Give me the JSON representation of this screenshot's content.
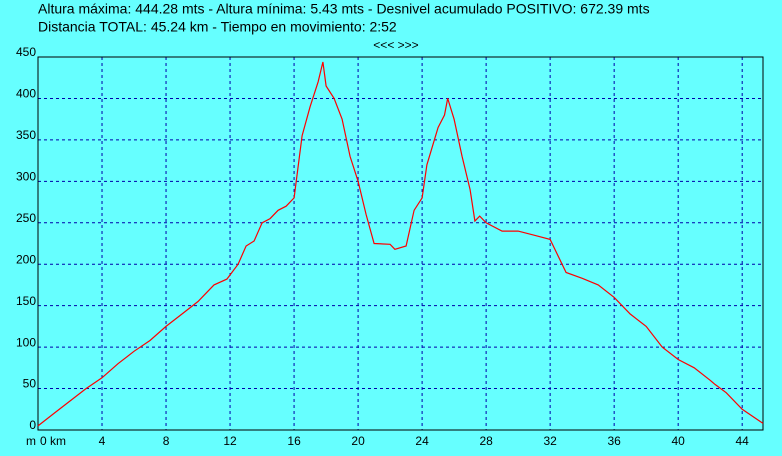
{
  "chart_data": {
    "type": "line",
    "header": [
      "Altura máxima: 444.28 mts - Altura mínima: 5.43 mts - Desnivel acumulado POSITIVO: 672.39 mts",
      "Distancia TOTAL: 45.24 km - Tiempo en movimiento: 2:52"
    ],
    "navigation": "<<< >>>",
    "y_unit": "m",
    "x": [
      0,
      1,
      2,
      3,
      4,
      5,
      6,
      7,
      8,
      9,
      10,
      11,
      11.8,
      12.5,
      13,
      13.5,
      14,
      14.5,
      15,
      15.5,
      16,
      16.5,
      17,
      17.5,
      17.8,
      18,
      18.5,
      19,
      19.5,
      20,
      20.5,
      21,
      22,
      22.3,
      23,
      23.5,
      24,
      24.3,
      25,
      25.4,
      25.6,
      26,
      26.5,
      27,
      27.3,
      27.6,
      28,
      29,
      30,
      31,
      32,
      33,
      34,
      35,
      36,
      37,
      38,
      39,
      40,
      41,
      42,
      42.3,
      43,
      44,
      45,
      45.3
    ],
    "series": [
      {
        "name": "Altura",
        "color": "#ff0000",
        "values": [
          5,
          20,
          35,
          50,
          63,
          80,
          95,
          108,
          125,
          140,
          155,
          175,
          182,
          200,
          222,
          228,
          250,
          255,
          265,
          270,
          280,
          355,
          390,
          420,
          444,
          415,
          400,
          375,
          330,
          300,
          260,
          225,
          224,
          218,
          222,
          265,
          280,
          320,
          365,
          380,
          400,
          375,
          330,
          290,
          252,
          258,
          250,
          240,
          240,
          235,
          230,
          190,
          183,
          175,
          160,
          140,
          125,
          100,
          85,
          75,
          60,
          55,
          45,
          25,
          12,
          8
        ]
      }
    ],
    "xlim": [
      0,
      45.3
    ],
    "ylim": [
      0,
      450
    ],
    "xticks": [
      {
        "value": 0,
        "label": "0 km"
      },
      4,
      8,
      12,
      16,
      20,
      24,
      28,
      32,
      36,
      40,
      44
    ],
    "yticks": [
      0,
      50,
      100,
      150,
      200,
      250,
      300,
      350,
      400,
      450
    ],
    "grid": true,
    "grid_color": "#0000aa",
    "background": "#66ffff"
  }
}
